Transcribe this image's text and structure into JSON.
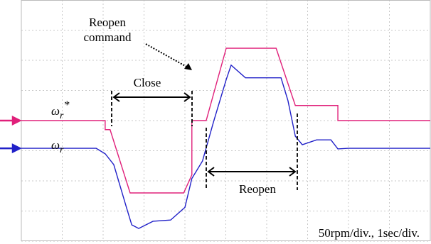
{
  "chart_data": {
    "type": "line",
    "series": [
      {
        "name": "ω",
        "sub": "r",
        "sup": "*",
        "color": "#e0207a",
        "x": [
          0,
          2.05,
          2.05,
          2.17,
          2.66,
          3.97,
          4.17,
          4.17,
          4.52,
          5.01,
          6.23,
          6.7,
          7.74,
          7.74,
          10
        ],
        "values": [
          0,
          0,
          -15,
          -15,
          -120,
          -120,
          -90,
          0,
          0,
          120,
          120,
          25,
          25,
          0,
          0
        ]
      },
      {
        "name": "ω",
        "sub": "r",
        "color": "#2020c8",
        "x": [
          0,
          1.83,
          2.05,
          2.26,
          2.57,
          2.7,
          2.87,
          3.22,
          3.65,
          4.0,
          4.17,
          4.43,
          4.7,
          5.01,
          5.13,
          5.48,
          5.91,
          6.35,
          6.52,
          6.7,
          6.87,
          7.22,
          7.57,
          7.74,
          8.0,
          10
        ],
        "values": [
          -46,
          -46,
          -55,
          -73,
          -144,
          -173,
          -179,
          -167,
          -165,
          -144,
          -96,
          -67,
          -2,
          68,
          92,
          71,
          71,
          71,
          33,
          -26,
          -40,
          -32,
          -32,
          -47,
          -46,
          -46
        ]
      }
    ],
    "xlim": [
      0,
      10
    ],
    "xticks": [
      0,
      1,
      2,
      3,
      4,
      5,
      6,
      7,
      8,
      9,
      10
    ],
    "ylim": [
      -200,
      200
    ],
    "yticks": [
      -200,
      -150,
      -100,
      -50,
      0,
      50,
      100,
      150,
      200
    ],
    "grid": true,
    "annotations": {
      "reopen_command": [
        "Reopen",
        "command"
      ],
      "close": "Close",
      "reopen": "Reopen",
      "scale": "50rpm/div., 1sec/div."
    }
  }
}
